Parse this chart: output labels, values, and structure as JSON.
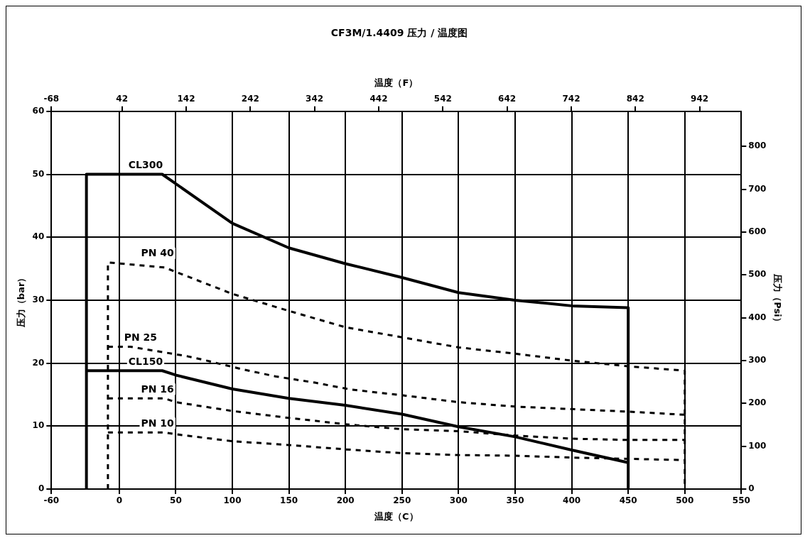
{
  "chart_data": {
    "type": "line",
    "title": "CF3M/1.4409 压力 / 温度图",
    "xlabel": "温度（C）",
    "x2label": "温度（F）",
    "ylabel": "压力（bar）",
    "y2label": "压力（Psi）",
    "xlim": [
      -60,
      550
    ],
    "xticks": [
      -60,
      0,
      50,
      100,
      150,
      200,
      250,
      300,
      350,
      400,
      450,
      500,
      550
    ],
    "x2lim": [
      -68,
      1007
    ],
    "x2ticks": [
      -68,
      42,
      142,
      242,
      342,
      442,
      542,
      642,
      742,
      842,
      942
    ],
    "ylim": [
      0,
      60
    ],
    "yticks": [
      0,
      10,
      20,
      30,
      40,
      50,
      60
    ],
    "y2lim": [
      0,
      882
    ],
    "y2ticks": [
      0,
      100,
      200,
      300,
      400,
      500,
      600,
      700,
      800
    ],
    "grid": true,
    "legend": false,
    "marker": "none",
    "series": [
      {
        "name": "CL300",
        "color": "#000000",
        "line_style": "solid",
        "x": [
          -29,
          -29,
          38,
          100,
          150,
          200,
          250,
          300,
          350,
          400,
          450,
          450
        ],
        "values": [
          0,
          50,
          50,
          42.2,
          38.3,
          35.8,
          33.6,
          31.2,
          30,
          29.1,
          28.8,
          0
        ]
      },
      {
        "name": "PN 40",
        "color": "#000000",
        "line_style": "dashed",
        "x": [
          -10,
          -10,
          40,
          100,
          150,
          200,
          250,
          300,
          350,
          400,
          450,
          500,
          500
        ],
        "values": [
          0,
          36,
          35.2,
          31,
          28.3,
          25.7,
          24.1,
          22.5,
          21.5,
          20.4,
          19.5,
          18.8,
          0
        ]
      },
      {
        "name": "PN 25",
        "color": "#000000",
        "line_style": "dashed",
        "x": [
          -10,
          10,
          60,
          75,
          107,
          138,
          173,
          205,
          250,
          300,
          350,
          400,
          450,
          500
        ],
        "values": [
          22.6,
          22.6,
          21.1,
          20.5,
          19.1,
          17.9,
          16.9,
          15.8,
          14.9,
          13.8,
          13.1,
          12.7,
          12.3,
          11.8
        ]
      },
      {
        "name": "CL150",
        "color": "#000000",
        "line_style": "solid",
        "x": [
          -29,
          38,
          50,
          100,
          150,
          200,
          250,
          300,
          350,
          400,
          450
        ],
        "values": [
          18.8,
          18.8,
          18.1,
          15.9,
          14.4,
          13.3,
          11.9,
          9.9,
          8.3,
          6.2,
          4.2
        ]
      },
      {
        "name": "PN 16",
        "color": "#000000",
        "line_style": "dashed",
        "x": [
          -10,
          40,
          50,
          100,
          150,
          200,
          250,
          300,
          350,
          400,
          450,
          500
        ],
        "values": [
          14.4,
          14.4,
          13.8,
          12.4,
          11.3,
          10.3,
          9.5,
          9.2,
          8.5,
          8,
          7.8,
          7.8
        ]
      },
      {
        "name": "PN 10",
        "color": "#000000",
        "line_style": "dashed",
        "x": [
          -10,
          40,
          50,
          100,
          150,
          200,
          250,
          300,
          350,
          400,
          450,
          500
        ],
        "values": [
          9,
          9,
          8.7,
          7.6,
          7,
          6.3,
          5.7,
          5.4,
          5.3,
          5,
          4.8,
          4.6
        ]
      }
    ]
  }
}
